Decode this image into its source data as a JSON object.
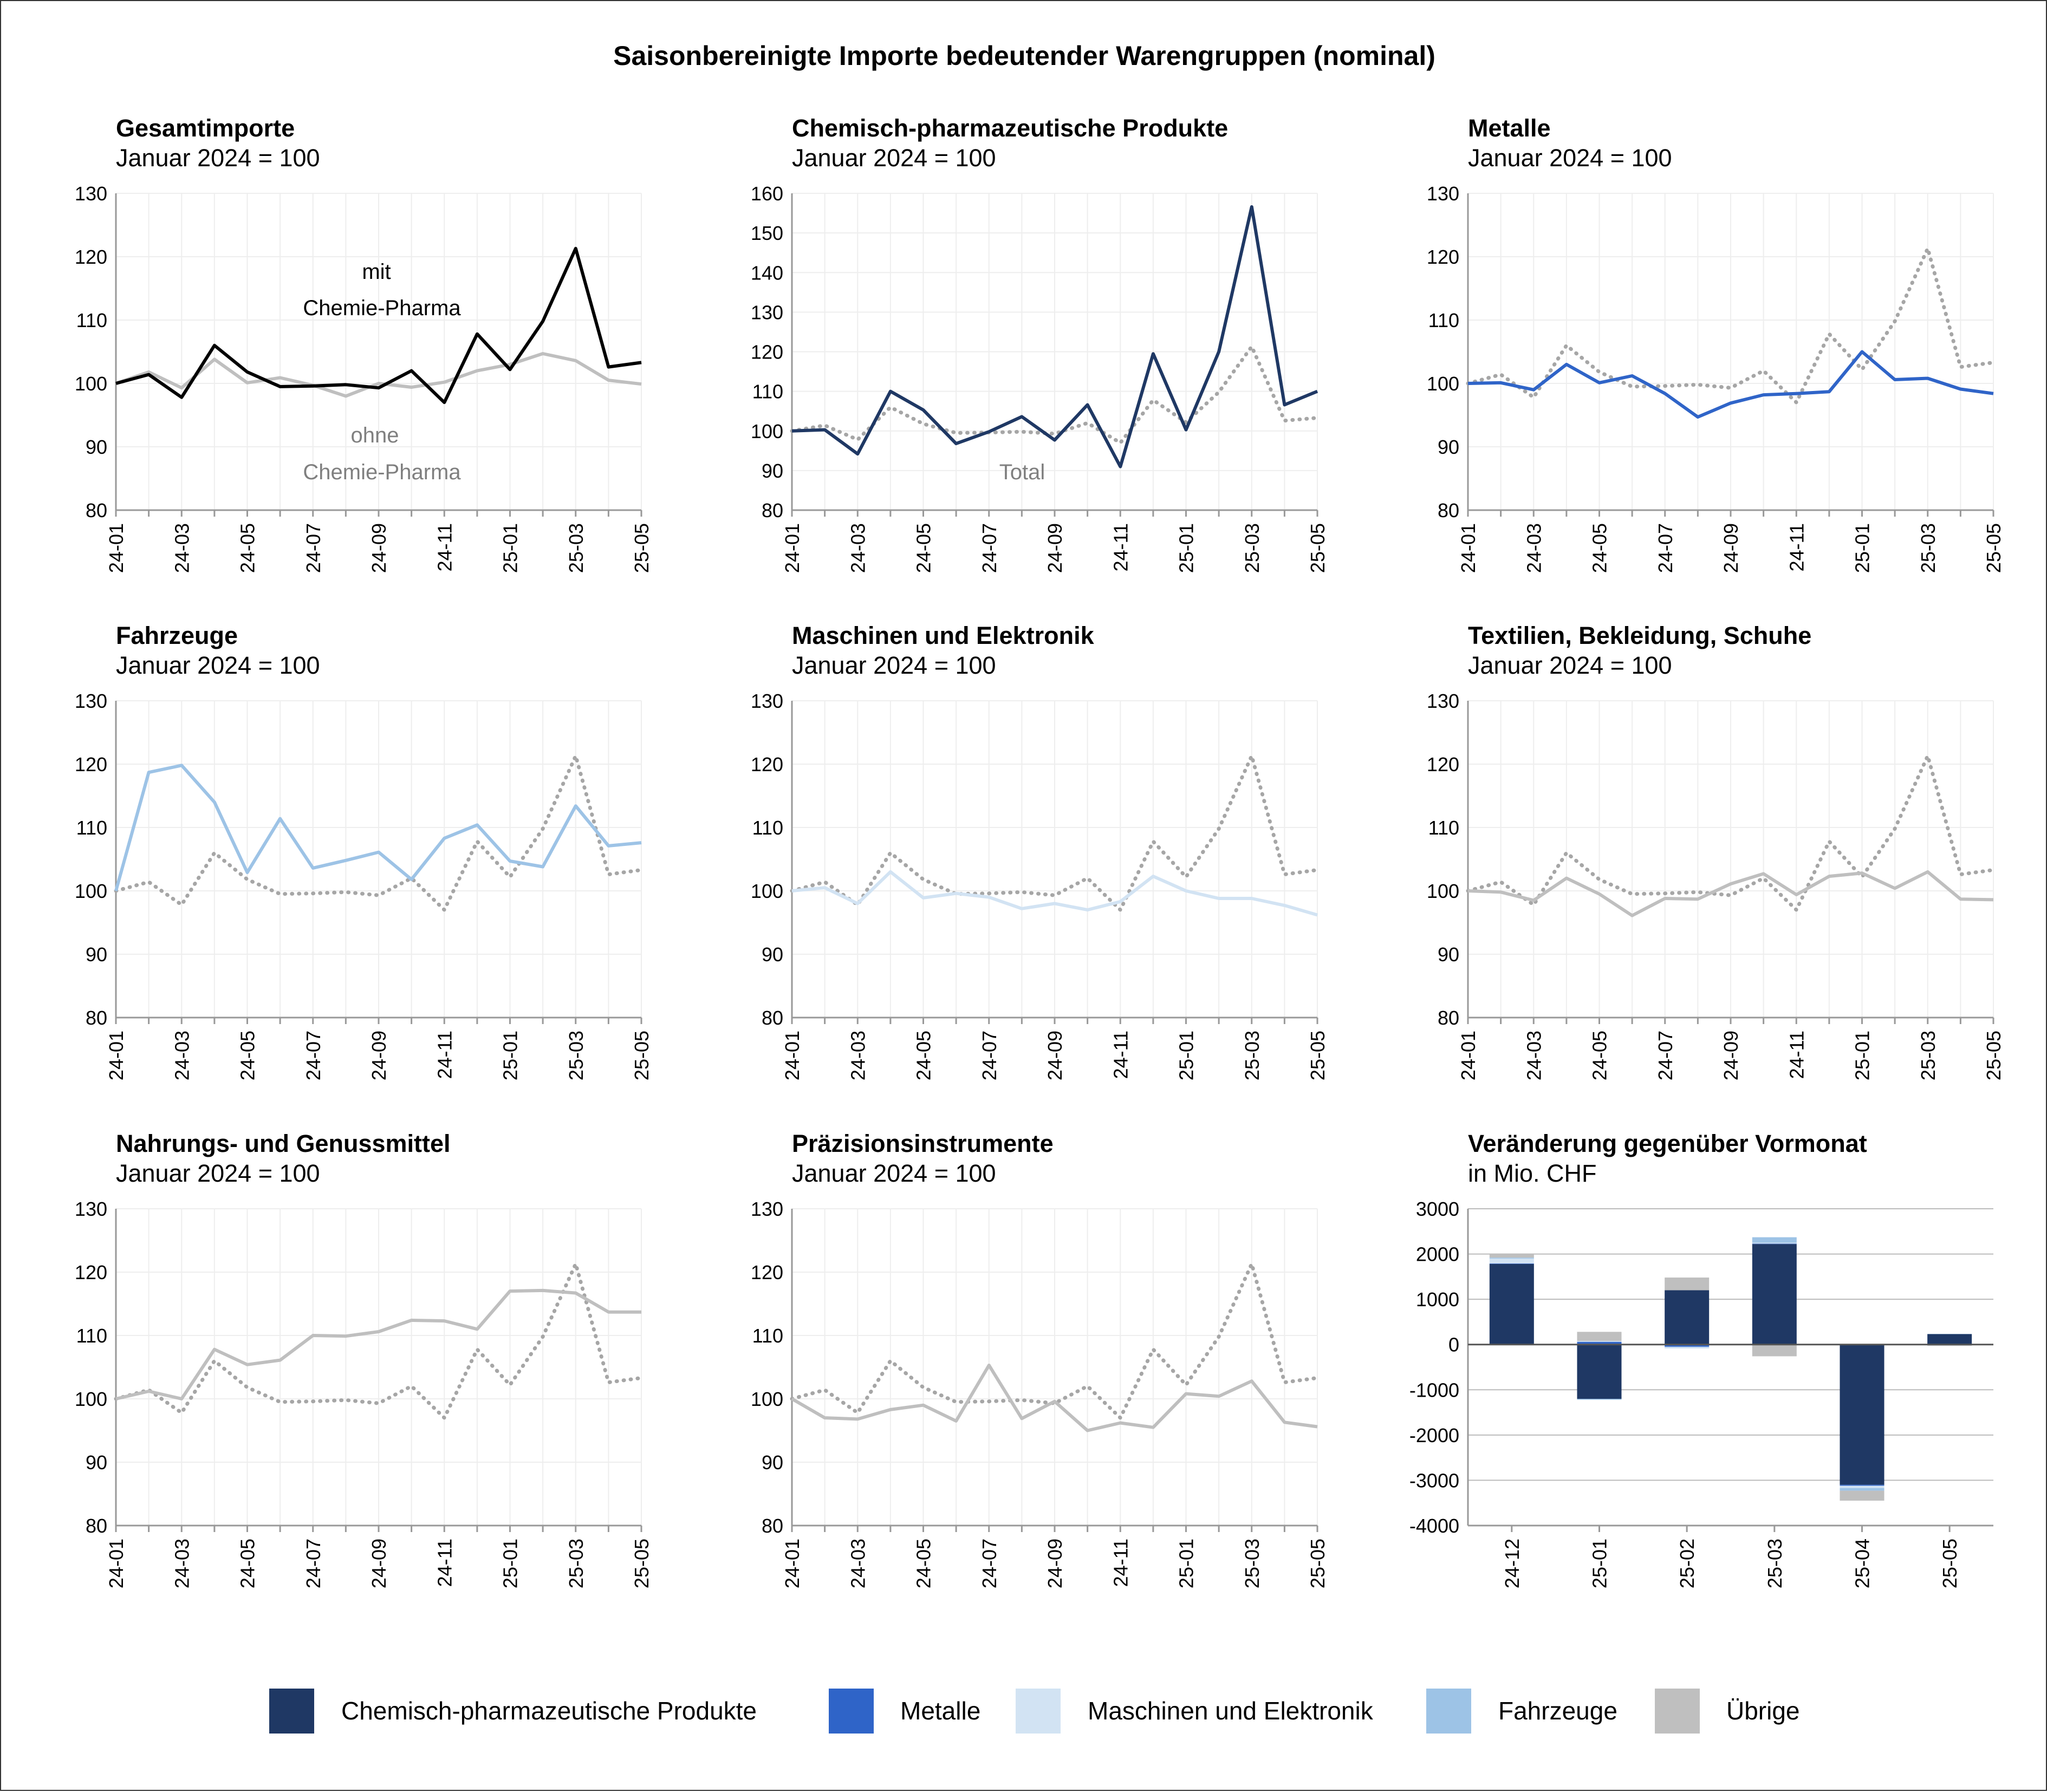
{
  "title": "Saisonbereinigte Importe bedeutender Warengruppen (nominal)",
  "colors": {
    "chem": "#1f3864",
    "metalle": "#2f64c8",
    "maschinen": "#d2e3f3",
    "fahrzeuge": "#9dc3e6",
    "uebrige": "#bfbfbf",
    "gesamt": "#000000",
    "total_ref": "#a6a6a6",
    "grid": "#eeeeee",
    "axis": "#999999",
    "bar_grid": "#bbbbbb"
  },
  "legend": {
    "items": [
      {
        "label": "Chemisch-pharmazeutische Produkte",
        "color": "#1f3864"
      },
      {
        "label": "Metalle",
        "color": "#2f64c8"
      },
      {
        "label": "Maschinen und Elektronik",
        "color": "#d2e3f3"
      },
      {
        "label": "Fahrzeuge",
        "color": "#9dc3e6"
      },
      {
        "label": "Übrige",
        "color": "#bfbfbf"
      }
    ]
  },
  "chart_data": [
    {
      "type": "line",
      "title": "Gesamtimporte",
      "subtitle": "Januar 2024 = 100",
      "x": [
        "24-01",
        "24-02",
        "24-03",
        "24-04",
        "24-05",
        "24-06",
        "24-07",
        "24-08",
        "24-09",
        "24-10",
        "24-11",
        "24-12",
        "25-01",
        "25-02",
        "25-03",
        "25-04",
        "25-05"
      ],
      "xtick_labels": [
        "24-01",
        "24-03",
        "24-05",
        "24-07",
        "24-09",
        "24-11",
        "25-01",
        "25-03",
        "25-05"
      ],
      "ylim": [
        80,
        130
      ],
      "yticks": [
        80,
        90,
        100,
        110,
        120,
        130
      ],
      "series": [
        {
          "name": "ohne Chemie-Pharma",
          "color": "#bfbfbf",
          "style": "solid",
          "values": [
            100,
            101.8,
            99.3,
            103.8,
            100.1,
            100.9,
            99.7,
            98.0,
            100.0,
            99.4,
            100.2,
            102.0,
            103.0,
            104.7,
            103.6,
            100.5,
            99.9
          ]
        },
        {
          "name": "mit Chemie-Pharma",
          "color": "#000000",
          "style": "solid",
          "values": [
            100,
            101.4,
            97.8,
            106.0,
            101.8,
            99.5,
            99.6,
            99.8,
            99.3,
            102.0,
            97.0,
            107.8,
            102.2,
            109.8,
            121.3,
            102.6,
            103.3
          ]
        }
      ],
      "annotations": [
        {
          "lines": [
            "mit",
            "Chemie-Pharma"
          ],
          "color": "#000000"
        },
        {
          "lines": [
            "ohne",
            "Chemie-Pharma"
          ],
          "color": "#7f7f7f"
        }
      ]
    },
    {
      "type": "line",
      "title": "Chemisch-pharmazeutische Produkte",
      "subtitle": "Januar 2024 = 100",
      "x": [
        "24-01",
        "24-02",
        "24-03",
        "24-04",
        "24-05",
        "24-06",
        "24-07",
        "24-08",
        "24-09",
        "24-10",
        "24-11",
        "24-12",
        "25-01",
        "25-02",
        "25-03",
        "25-04",
        "25-05"
      ],
      "xtick_labels": [
        "24-01",
        "24-03",
        "24-05",
        "24-07",
        "24-09",
        "24-11",
        "25-01",
        "25-03",
        "25-05"
      ],
      "ylim": [
        80,
        160
      ],
      "yticks": [
        80,
        90,
        100,
        110,
        120,
        130,
        140,
        150,
        160
      ],
      "series": [
        {
          "name": "Total",
          "color": "#a6a6a6",
          "style": "dotted",
          "values": [
            100,
            101.4,
            97.8,
            106.0,
            101.8,
            99.5,
            99.6,
            99.8,
            99.3,
            102.0,
            97.0,
            107.8,
            102.2,
            109.8,
            121.3,
            102.6,
            103.3
          ]
        },
        {
          "name": "Chemisch-pharmazeutische Produkte",
          "color": "#1f3864",
          "style": "solid",
          "values": [
            100,
            100.3,
            94.2,
            110.0,
            105.3,
            96.8,
            99.8,
            103.6,
            97.7,
            106.6,
            91.0,
            119.5,
            100.3,
            120.0,
            156.6,
            106.6,
            110.0
          ]
        }
      ],
      "annotations": [
        {
          "lines": [
            "Total"
          ],
          "color": "#7f7f7f"
        }
      ]
    },
    {
      "type": "line",
      "title": "Metalle",
      "subtitle": "Januar 2024 = 100",
      "x": [
        "24-01",
        "24-02",
        "24-03",
        "24-04",
        "24-05",
        "24-06",
        "24-07",
        "24-08",
        "24-09",
        "24-10",
        "24-11",
        "24-12",
        "25-01",
        "25-02",
        "25-03",
        "25-04",
        "25-05"
      ],
      "xtick_labels": [
        "24-01",
        "24-03",
        "24-05",
        "24-07",
        "24-09",
        "24-11",
        "25-01",
        "25-03",
        "25-05"
      ],
      "ylim": [
        80,
        130
      ],
      "yticks": [
        80,
        90,
        100,
        110,
        120,
        130
      ],
      "series": [
        {
          "name": "Total",
          "color": "#a6a6a6",
          "style": "dotted",
          "values": [
            100,
            101.4,
            97.8,
            106.0,
            101.8,
            99.5,
            99.6,
            99.8,
            99.3,
            102.0,
            97.0,
            107.8,
            102.2,
            109.8,
            121.3,
            102.6,
            103.3
          ]
        },
        {
          "name": "Metalle",
          "color": "#2f64c8",
          "style": "solid",
          "values": [
            100,
            100.1,
            99.0,
            103.0,
            100.1,
            101.2,
            98.4,
            94.7,
            96.9,
            98.2,
            98.4,
            98.7,
            105.0,
            100.6,
            100.8,
            99.1,
            98.4
          ]
        }
      ]
    },
    {
      "type": "line",
      "title": "Fahrzeuge",
      "subtitle": "Januar 2024 = 100",
      "x": [
        "24-01",
        "24-02",
        "24-03",
        "24-04",
        "24-05",
        "24-06",
        "24-07",
        "24-08",
        "24-09",
        "24-10",
        "24-11",
        "24-12",
        "25-01",
        "25-02",
        "25-03",
        "25-04",
        "25-05"
      ],
      "xtick_labels": [
        "24-01",
        "24-03",
        "24-05",
        "24-07",
        "24-09",
        "24-11",
        "25-01",
        "25-03",
        "25-05"
      ],
      "ylim": [
        80,
        130
      ],
      "yticks": [
        80,
        90,
        100,
        110,
        120,
        130
      ],
      "series": [
        {
          "name": "Total",
          "color": "#a6a6a6",
          "style": "dotted",
          "values": [
            100,
            101.4,
            97.8,
            106.0,
            101.8,
            99.5,
            99.6,
            99.8,
            99.3,
            102.0,
            97.0,
            107.8,
            102.2,
            109.8,
            121.3,
            102.6,
            103.3
          ]
        },
        {
          "name": "Fahrzeuge",
          "color": "#9dc3e6",
          "style": "solid",
          "values": [
            100,
            118.7,
            119.8,
            114.0,
            102.9,
            111.4,
            103.6,
            104.8,
            106.1,
            101.8,
            108.3,
            110.4,
            104.7,
            103.8,
            113.4,
            107.1,
            107.6
          ]
        }
      ]
    },
    {
      "type": "line",
      "title": "Maschinen und Elektronik",
      "subtitle": "Januar 2024 = 100",
      "x": [
        "24-01",
        "24-02",
        "24-03",
        "24-04",
        "24-05",
        "24-06",
        "24-07",
        "24-08",
        "24-09",
        "24-10",
        "24-11",
        "24-12",
        "25-01",
        "25-02",
        "25-03",
        "25-04",
        "25-05"
      ],
      "xtick_labels": [
        "24-01",
        "24-03",
        "24-05",
        "24-07",
        "24-09",
        "24-11",
        "25-01",
        "25-03",
        "25-05"
      ],
      "ylim": [
        80,
        130
      ],
      "yticks": [
        80,
        90,
        100,
        110,
        120,
        130
      ],
      "series": [
        {
          "name": "Total",
          "color": "#a6a6a6",
          "style": "dotted",
          "values": [
            100,
            101.4,
            97.8,
            106.0,
            101.8,
            99.5,
            99.6,
            99.8,
            99.3,
            102.0,
            97.0,
            107.8,
            102.2,
            109.8,
            121.3,
            102.6,
            103.3
          ]
        },
        {
          "name": "Maschinen und Elektronik",
          "color": "#d2e3f3",
          "style": "solid",
          "values": [
            100,
            100.5,
            98.0,
            103.0,
            98.9,
            99.6,
            99.0,
            97.2,
            98.0,
            97.0,
            98.3,
            102.3,
            100.0,
            98.8,
            98.8,
            97.7,
            96.2
          ]
        }
      ]
    },
    {
      "type": "line",
      "title": "Textilien, Bekleidung, Schuhe",
      "subtitle": "Januar 2024 = 100",
      "x": [
        "24-01",
        "24-02",
        "24-03",
        "24-04",
        "24-05",
        "24-06",
        "24-07",
        "24-08",
        "24-09",
        "24-10",
        "24-11",
        "24-12",
        "25-01",
        "25-02",
        "25-03",
        "25-04",
        "25-05"
      ],
      "xtick_labels": [
        "24-01",
        "24-03",
        "24-05",
        "24-07",
        "24-09",
        "24-11",
        "25-01",
        "25-03",
        "25-05"
      ],
      "ylim": [
        80,
        130
      ],
      "yticks": [
        80,
        90,
        100,
        110,
        120,
        130
      ],
      "series": [
        {
          "name": "Total",
          "color": "#a6a6a6",
          "style": "dotted",
          "values": [
            100,
            101.4,
            97.8,
            106.0,
            101.8,
            99.5,
            99.6,
            99.8,
            99.3,
            102.0,
            97.0,
            107.8,
            102.2,
            109.8,
            121.3,
            102.6,
            103.3
          ]
        },
        {
          "name": "Textilien, Bekleidung, Schuhe",
          "color": "#bfbfbf",
          "style": "solid",
          "values": [
            100,
            99.8,
            98.5,
            102.0,
            99.5,
            96.1,
            98.8,
            98.7,
            101.1,
            102.7,
            99.4,
            102.3,
            102.8,
            100.4,
            103.0,
            98.7,
            98.6
          ]
        }
      ]
    },
    {
      "type": "line",
      "title": "Nahrungs- und Genussmittel",
      "subtitle": "Januar 2024 = 100",
      "x": [
        "24-01",
        "24-02",
        "24-03",
        "24-04",
        "24-05",
        "24-06",
        "24-07",
        "24-08",
        "24-09",
        "24-10",
        "24-11",
        "24-12",
        "25-01",
        "25-02",
        "25-03",
        "25-04",
        "25-05"
      ],
      "xtick_labels": [
        "24-01",
        "24-03",
        "24-05",
        "24-07",
        "24-09",
        "24-11",
        "25-01",
        "25-03",
        "25-05"
      ],
      "ylim": [
        80,
        130
      ],
      "yticks": [
        80,
        90,
        100,
        110,
        120,
        130
      ],
      "series": [
        {
          "name": "Total",
          "color": "#a6a6a6",
          "style": "dotted",
          "values": [
            100,
            101.4,
            97.8,
            106.0,
            101.8,
            99.5,
            99.6,
            99.8,
            99.3,
            102.0,
            97.0,
            107.8,
            102.2,
            109.8,
            121.3,
            102.6,
            103.3
          ]
        },
        {
          "name": "Nahrungs- und Genussmittel",
          "color": "#bfbfbf",
          "style": "solid",
          "values": [
            100,
            101.2,
            100.0,
            107.8,
            105.4,
            106.1,
            110.0,
            109.9,
            110.6,
            112.4,
            112.3,
            111.0,
            117.0,
            117.1,
            116.7,
            113.7,
            113.7
          ]
        }
      ]
    },
    {
      "type": "line",
      "title": "Präzisionsinstrumente",
      "subtitle": "Januar 2024 = 100",
      "x": [
        "24-01",
        "24-02",
        "24-03",
        "24-04",
        "24-05",
        "24-06",
        "24-07",
        "24-08",
        "24-09",
        "24-10",
        "24-11",
        "24-12",
        "25-01",
        "25-02",
        "25-03",
        "25-04",
        "25-05"
      ],
      "xtick_labels": [
        "24-01",
        "24-03",
        "24-05",
        "24-07",
        "24-09",
        "24-11",
        "25-01",
        "25-03",
        "25-05"
      ],
      "ylim": [
        80,
        130
      ],
      "yticks": [
        80,
        90,
        100,
        110,
        120,
        130
      ],
      "series": [
        {
          "name": "Total",
          "color": "#a6a6a6",
          "style": "dotted",
          "values": [
            100,
            101.4,
            97.8,
            106.0,
            101.8,
            99.5,
            99.6,
            99.8,
            99.3,
            102.0,
            97.0,
            107.8,
            102.2,
            109.8,
            121.3,
            102.6,
            103.3
          ]
        },
        {
          "name": "Präzisionsinstrumente",
          "color": "#bfbfbf",
          "style": "solid",
          "values": [
            100,
            97.0,
            96.8,
            98.3,
            99.0,
            96.5,
            105.3,
            96.9,
            99.6,
            95.0,
            96.2,
            95.5,
            100.8,
            100.4,
            102.8,
            96.3,
            95.6
          ]
        }
      ]
    },
    {
      "type": "bar",
      "stacked": true,
      "title": "Veränderung gegenüber Vormonat",
      "subtitle": "in Mio. CHF",
      "categories": [
        "24-12",
        "25-01",
        "25-02",
        "25-03",
        "25-04",
        "25-05"
      ],
      "ylim": [
        -4000,
        3000
      ],
      "yticks": [
        -4000,
        -3000,
        -2000,
        -1000,
        0,
        1000,
        2000,
        3000
      ],
      "series": [
        {
          "name": "Chemisch-pharmazeutische Produkte",
          "color": "#1f3864",
          "values": [
            1780,
            -1200,
            1200,
            2220,
            -3100,
            230
          ]
        },
        {
          "name": "Metalle",
          "color": "#2f64c8",
          "values": [
            10,
            60,
            -50,
            10,
            -20,
            -10
          ]
        },
        {
          "name": "Maschinen und Elektronik",
          "color": "#d2e3f3",
          "values": [
            110,
            20,
            -20,
            20,
            -50,
            -10
          ]
        },
        {
          "name": "Fahrzeuge",
          "color": "#9dc3e6",
          "values": [
            20,
            -20,
            -10,
            120,
            -60,
            5
          ]
        },
        {
          "name": "Übrige",
          "color": "#bfbfbf",
          "values": [
            90,
            200,
            280,
            -260,
            -220,
            -10
          ]
        }
      ]
    }
  ]
}
